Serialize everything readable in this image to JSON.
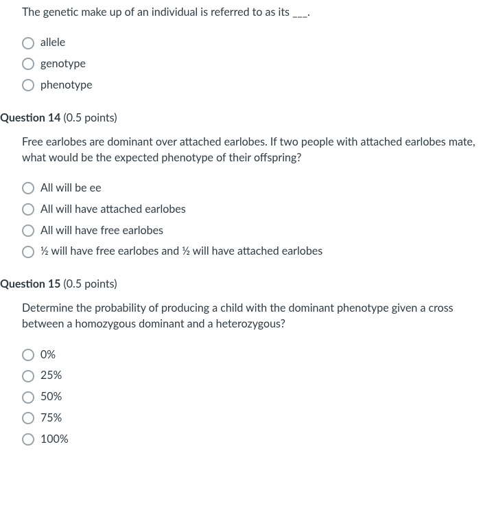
{
  "q13": {
    "text": "The genetic make up of an individual is referred to as its ___.",
    "options": [
      "allele",
      "genotype",
      "phenotype"
    ]
  },
  "q14": {
    "number": "Question 14",
    "points": "(0.5 points)",
    "text": "Free earlobes are dominant over attached earlobes. If two people with attached earlobes mate, what would be the expected phenotype of their offspring?",
    "options": [
      "All will be ee",
      "All will have attached earlobes",
      "All will have free earlobes",
      "½ will have free earlobes and ½ will have attached earlobes"
    ]
  },
  "q15": {
    "number": "Question 15",
    "points": "(0.5 points)",
    "text": "Determine the probability of producing a child with the dominant phenotype given a cross between a homozygous dominant and a heterozygous?",
    "options": [
      "0%",
      "25%",
      "50%",
      "75%",
      "100%"
    ]
  },
  "colors": {
    "text": "#2d3b45",
    "radio_border": "#9aa3a9",
    "background": "#ffffff"
  }
}
